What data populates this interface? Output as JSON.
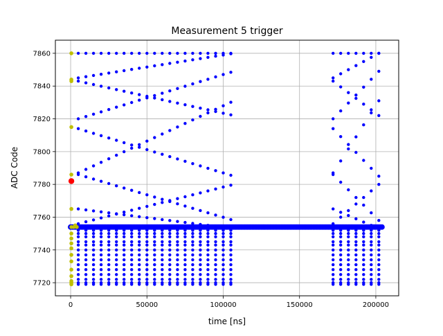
{
  "chart_data": {
    "type": "scatter",
    "title": "Measurement 5 trigger",
    "xlabel": "time [ns]",
    "ylabel": "ADC Code",
    "xlim": [
      -10000,
      215000
    ],
    "ylim": [
      7712,
      7868
    ],
    "xticks": [
      0,
      50000,
      100000,
      150000,
      200000
    ],
    "yticks": [
      7720,
      7740,
      7760,
      7780,
      7800,
      7820,
      7840,
      7860
    ],
    "grid": true,
    "colors": {
      "main": "#0000ff",
      "pretrigger": "#bfbf00",
      "trigger": "#ff0000",
      "grid": "#b0b0b0"
    },
    "segments": [
      {
        "x_start": 5000,
        "x_end": 107000,
        "step": 5000
      },
      {
        "x_start": 172000,
        "x_end": 202000,
        "step": 5000
      }
    ],
    "descending_lines": [
      {
        "y_start": 7843,
        "y_end": 7822
      },
      {
        "y_start": 7814,
        "y_end": 7785
      },
      {
        "y_start": 7786,
        "y_end": 7758
      },
      {
        "y_start": 7765,
        "y_end": 7753
      }
    ],
    "ascending_lines": [
      {
        "y_start": 7845,
        "y_end": 7860
      },
      {
        "y_start": 7820,
        "y_end": 7849
      },
      {
        "y_start": 7787,
        "y_end": 7831
      },
      {
        "y_start": 7756,
        "y_end": 7780
      }
    ],
    "flat_lines": [
      {
        "y": 7860
      }
    ],
    "baseline": {
      "y": 7754,
      "x_start": 0,
      "x_end": 204000,
      "step": 1000
    },
    "lower_rows": [
      7752,
      7750,
      7748,
      7745,
      7743,
      7740,
      7737,
      7734,
      7731,
      7728,
      7725,
      7722,
      7720,
      7719
    ],
    "pretrigger_points": [
      {
        "x": 500,
        "y": 7860
      },
      {
        "x": 500,
        "y": 7844
      },
      {
        "x": 500,
        "y": 7843
      },
      {
        "x": 500,
        "y": 7815
      },
      {
        "x": 500,
        "y": 7786
      },
      {
        "x": 500,
        "y": 7765
      },
      {
        "x": 500,
        "y": 7754
      },
      {
        "x": 500,
        "y": 7750
      },
      {
        "x": 500,
        "y": 7747
      },
      {
        "x": 500,
        "y": 7744
      },
      {
        "x": 500,
        "y": 7741
      },
      {
        "x": 500,
        "y": 7737
      },
      {
        "x": 500,
        "y": 7733
      },
      {
        "x": 500,
        "y": 7728
      },
      {
        "x": 500,
        "y": 7724
      },
      {
        "x": 500,
        "y": 7721
      },
      {
        "x": 500,
        "y": 7720
      },
      {
        "x": 500,
        "y": 7719
      },
      {
        "x": 2000,
        "y": 7754
      },
      {
        "x": 3000,
        "y": 7755
      },
      {
        "x": 4000,
        "y": 7754
      }
    ],
    "trigger_point": {
      "x": 500,
      "y": 7782
    }
  }
}
